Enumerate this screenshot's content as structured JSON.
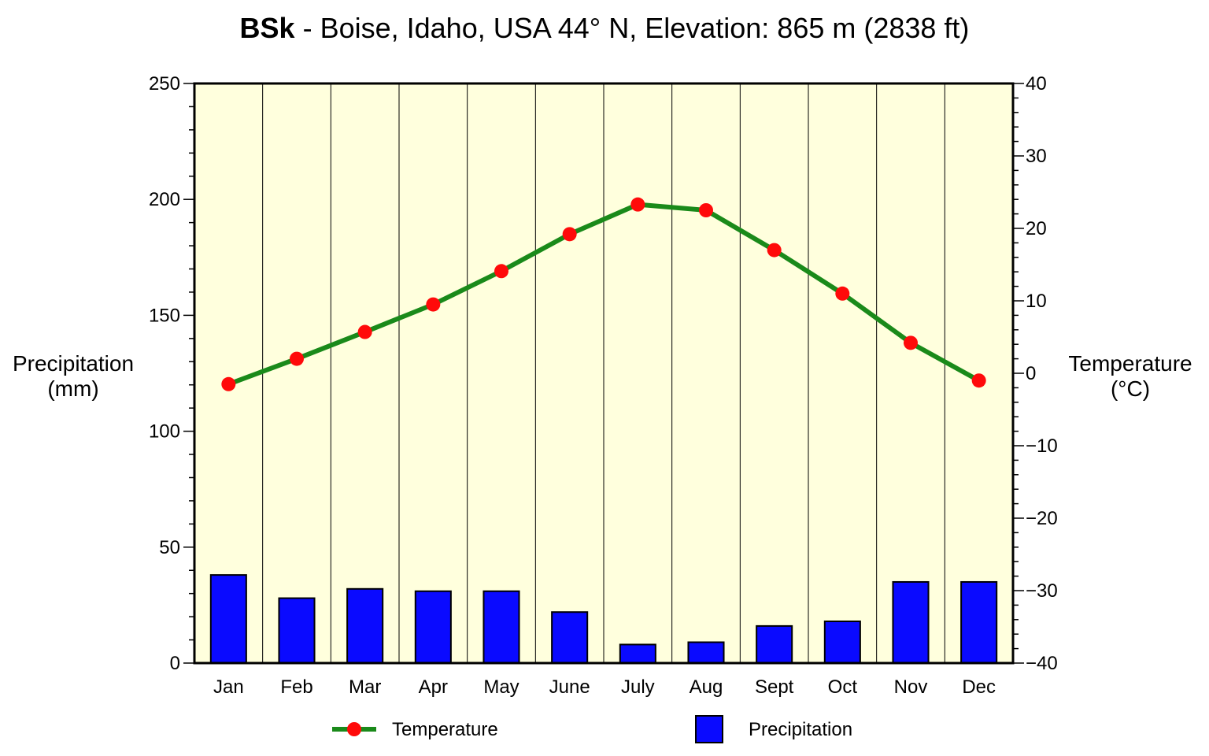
{
  "chart_data": {
    "type": "bar+line",
    "title_bold": "BSk",
    "title_rest": " - Boise, Idaho, USA 44° N, Elevation: 865 m (2838 ft)",
    "categories": [
      "Jan",
      "Feb",
      "Mar",
      "Apr",
      "May",
      "June",
      "July",
      "Aug",
      "Sept",
      "Oct",
      "Nov",
      "Dec"
    ],
    "precipitation": {
      "name": "Precipitation",
      "values": [
        38,
        28,
        32,
        31,
        31,
        22,
        8,
        9,
        16,
        18,
        35,
        35
      ],
      "color": "#0a0aff"
    },
    "temperature": {
      "name": "Temperature",
      "values": [
        -1.5,
        2.0,
        5.7,
        9.5,
        14.1,
        19.2,
        23.3,
        22.5,
        17.0,
        11.0,
        4.2,
        -1.0
      ],
      "line_color": "#1a8a1a",
      "marker_color": "#ff0a0a"
    },
    "y_left": {
      "label_line1": "Precipitation",
      "label_line2": "(mm)",
      "min": 0,
      "max": 250,
      "ticks": [
        0,
        50,
        100,
        150,
        200,
        250
      ]
    },
    "y_right": {
      "label_line1": "Temperature",
      "label_line2": "(°C)",
      "min": -40,
      "max": 40,
      "ticks": [
        -40,
        -30,
        -20,
        -10,
        0,
        10,
        20,
        30,
        40
      ]
    },
    "plot_background": "#ffffdd",
    "legend": {
      "placement": "bottom"
    }
  }
}
